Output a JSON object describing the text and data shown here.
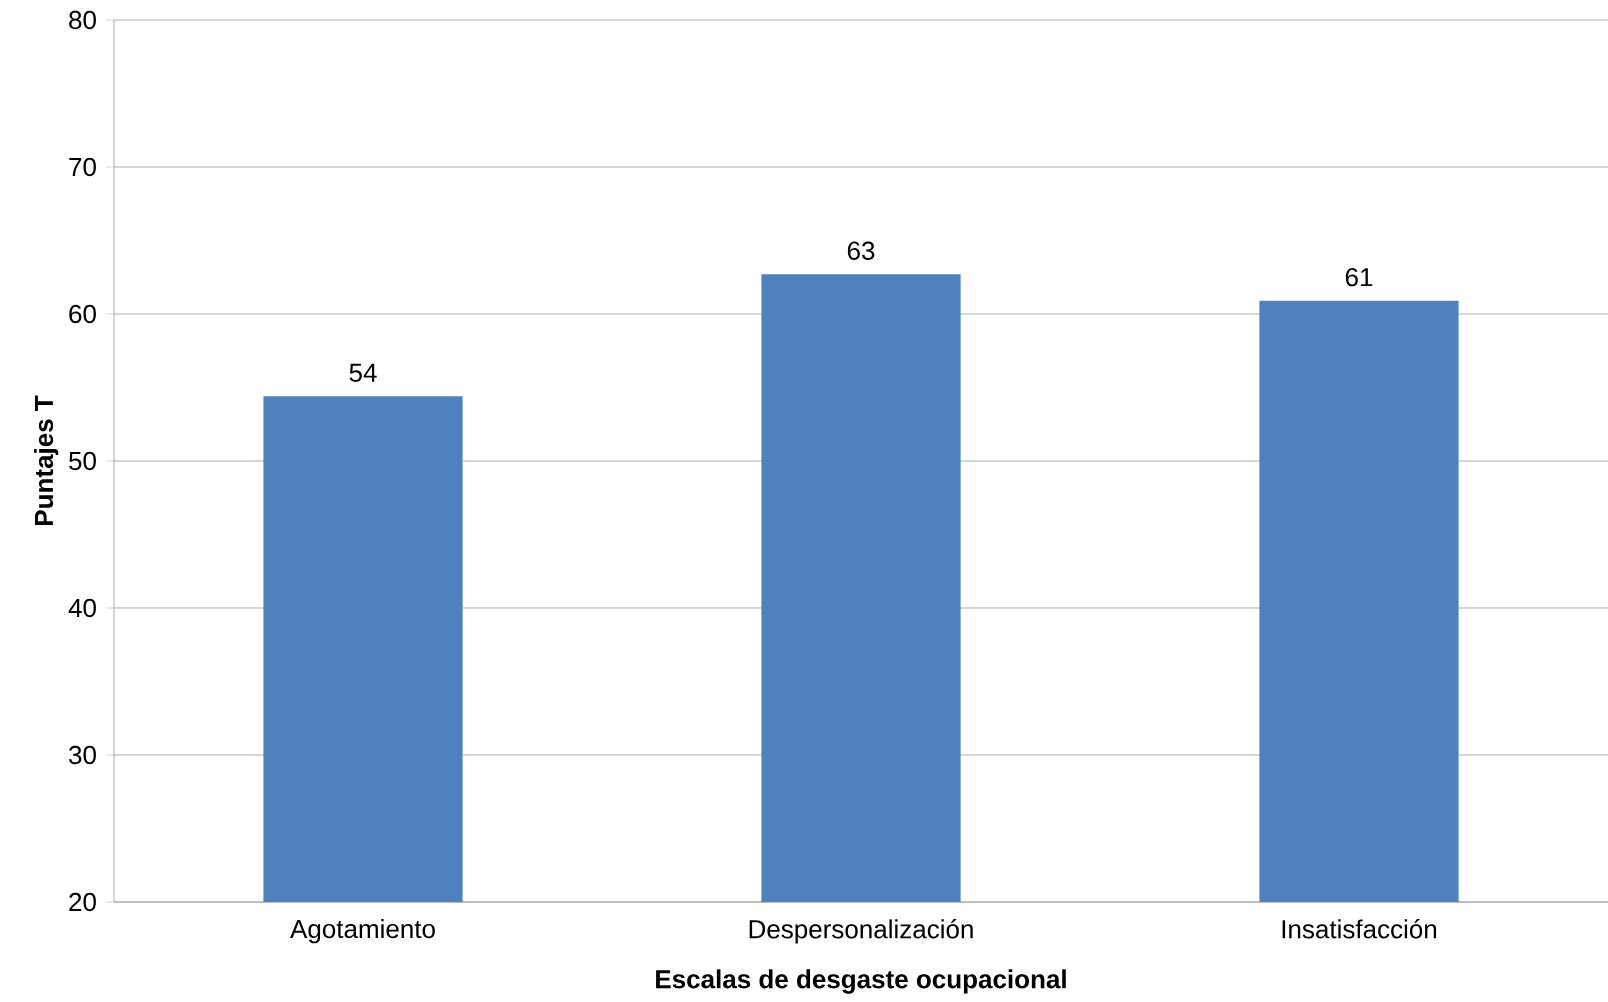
{
  "chart_data": {
    "type": "bar",
    "xlabel": "Escalas de desgaste ocupacional",
    "ylabel": "Puntajes T",
    "categories": [
      "Agotamiento",
      "Despersonalización",
      "Insatisfacción"
    ],
    "values": [
      54.4,
      62.7,
      60.9
    ],
    "value_labels": [
      "54",
      "63",
      "61"
    ],
    "color": "#4f81bd",
    "ylim": [
      20,
      80
    ],
    "yticks": [
      20,
      30,
      40,
      50,
      60,
      70,
      80
    ],
    "grid": "y"
  }
}
